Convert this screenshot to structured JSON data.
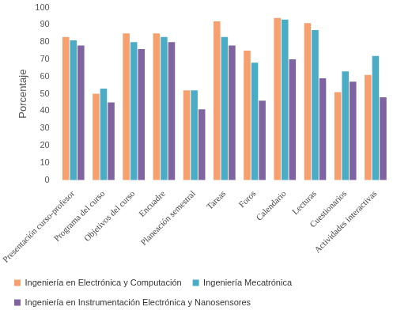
{
  "chart_data": {
    "type": "bar",
    "y_label": "Porcentaje",
    "categories": [
      "Presentación curso-profesor",
      "Programa del curso",
      "Objetivos del curso",
      "Encuadre",
      "Planeación semestral",
      "Tareas",
      "Foros",
      "Calendario",
      "Lecturas",
      "Cuestionarios",
      "Actividades interactivas"
    ],
    "series": [
      {
        "name": "Ingeniería en Electrónica y Computación",
        "color": "#f5a06e",
        "values": [
          83,
          50,
          85,
          85,
          52,
          92,
          75,
          94,
          91,
          51,
          61
        ]
      },
      {
        "name": "Ingeniería Mecatrónica",
        "color": "#4bacc6",
        "values": [
          81,
          53,
          80,
          83,
          52,
          83,
          68,
          93,
          87,
          63,
          72
        ]
      },
      {
        "name": "Ingeniería en Instrumentación Electrónica y Nanosensores",
        "color": "#8064a2",
        "values": [
          78,
          45,
          76,
          80,
          41,
          78,
          46,
          70,
          59,
          57,
          48
        ]
      }
    ],
    "ylim": [
      0,
      100
    ],
    "yticks": [
      0,
      10,
      20,
      30,
      40,
      50,
      60,
      70,
      80,
      90,
      100
    ],
    "grid": false,
    "legend": "bottom"
  }
}
